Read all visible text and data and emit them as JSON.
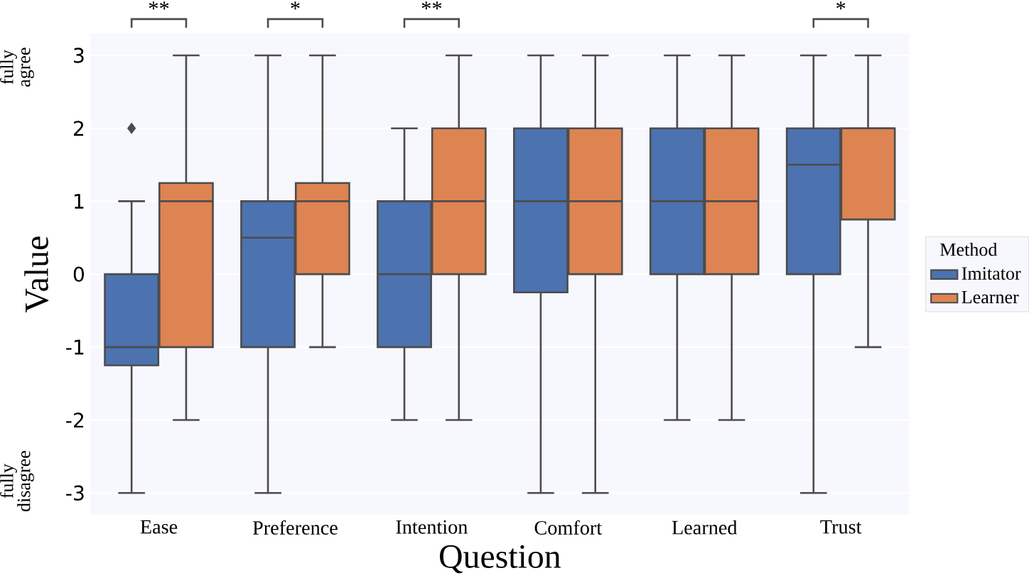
{
  "chart_data": {
    "type": "box",
    "xlabel": "Question",
    "ylabel": "Value",
    "legend_title": "Method",
    "categories": [
      "Ease",
      "Preference",
      "Intention",
      "Comfort",
      "Learned",
      "Trust"
    ],
    "series": [
      {
        "name": "Imitator",
        "color": "#4c72b0",
        "boxes": [
          {
            "low": -3,
            "q1": -1.25,
            "median": -1,
            "q3": 0,
            "high": 1,
            "outliers": [
              2
            ]
          },
          {
            "low": -3,
            "q1": -1,
            "median": 0.5,
            "q3": 1,
            "high": 3
          },
          {
            "low": -2,
            "q1": -1,
            "median": 0,
            "q3": 1,
            "high": 2
          },
          {
            "low": -3,
            "q1": -0.25,
            "median": 1,
            "q3": 2,
            "high": 3
          },
          {
            "low": -2,
            "q1": 0,
            "median": 1,
            "q3": 2,
            "high": 3
          },
          {
            "low": -3,
            "q1": 0,
            "median": 1.5,
            "q3": 2,
            "high": 3
          }
        ]
      },
      {
        "name": "Learner",
        "color": "#dd8452",
        "boxes": [
          {
            "low": -2,
            "q1": -1,
            "median": 1,
            "q3": 1.25,
            "high": 3
          },
          {
            "low": -1,
            "q1": 0,
            "median": 1,
            "q3": 1.25,
            "high": 3
          },
          {
            "low": -2,
            "q1": 0,
            "median": 1,
            "q3": 2,
            "high": 3
          },
          {
            "low": -3,
            "q1": 0,
            "median": 1,
            "q3": 2,
            "high": 3
          },
          {
            "low": -2,
            "q1": 0,
            "median": 1,
            "q3": 2,
            "high": 3
          },
          {
            "low": -1,
            "q1": 0.75,
            "median": 2,
            "q3": 2,
            "high": 3
          }
        ]
      }
    ],
    "ylim": [
      -3.3,
      3.3
    ],
    "yticks": [
      -3,
      -2,
      -1,
      0,
      1,
      2,
      3
    ],
    "grid": "y",
    "legend": "right",
    "annotations": [
      "**",
      "*",
      "**",
      "*",
      "fully agree",
      "fully disagree"
    ]
  }
}
